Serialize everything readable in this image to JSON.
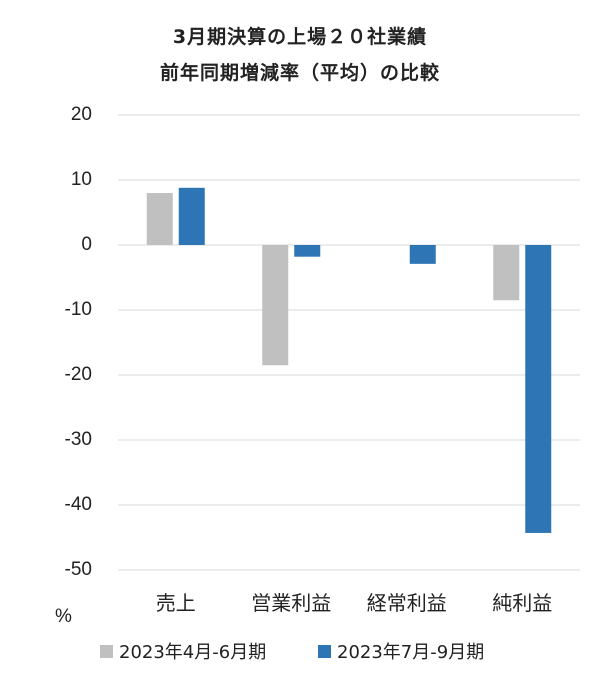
{
  "chart_data": {
    "type": "bar",
    "title_line1": "3月期決算の上場２０社業績",
    "title_line2": "前年同期増減率（平均）の比較",
    "ylabel": "%",
    "ylim": [
      -50,
      20
    ],
    "yticks": [
      20,
      10,
      0,
      -10,
      -20,
      -30,
      -40,
      -50
    ],
    "grid": true,
    "legend_position": "bottom",
    "categories": [
      "売上",
      "営業利益",
      "経常利益",
      "純利益"
    ],
    "series": [
      {
        "name": "2023年4月-6月期",
        "color": "#c0c0c0",
        "values": [
          8.0,
          -18.5,
          0,
          -8.5
        ]
      },
      {
        "name": "2023年7月-9月期",
        "color": "#2e75b6",
        "values": [
          8.8,
          -1.8,
          -2.9,
          -44.3
        ]
      }
    ]
  }
}
